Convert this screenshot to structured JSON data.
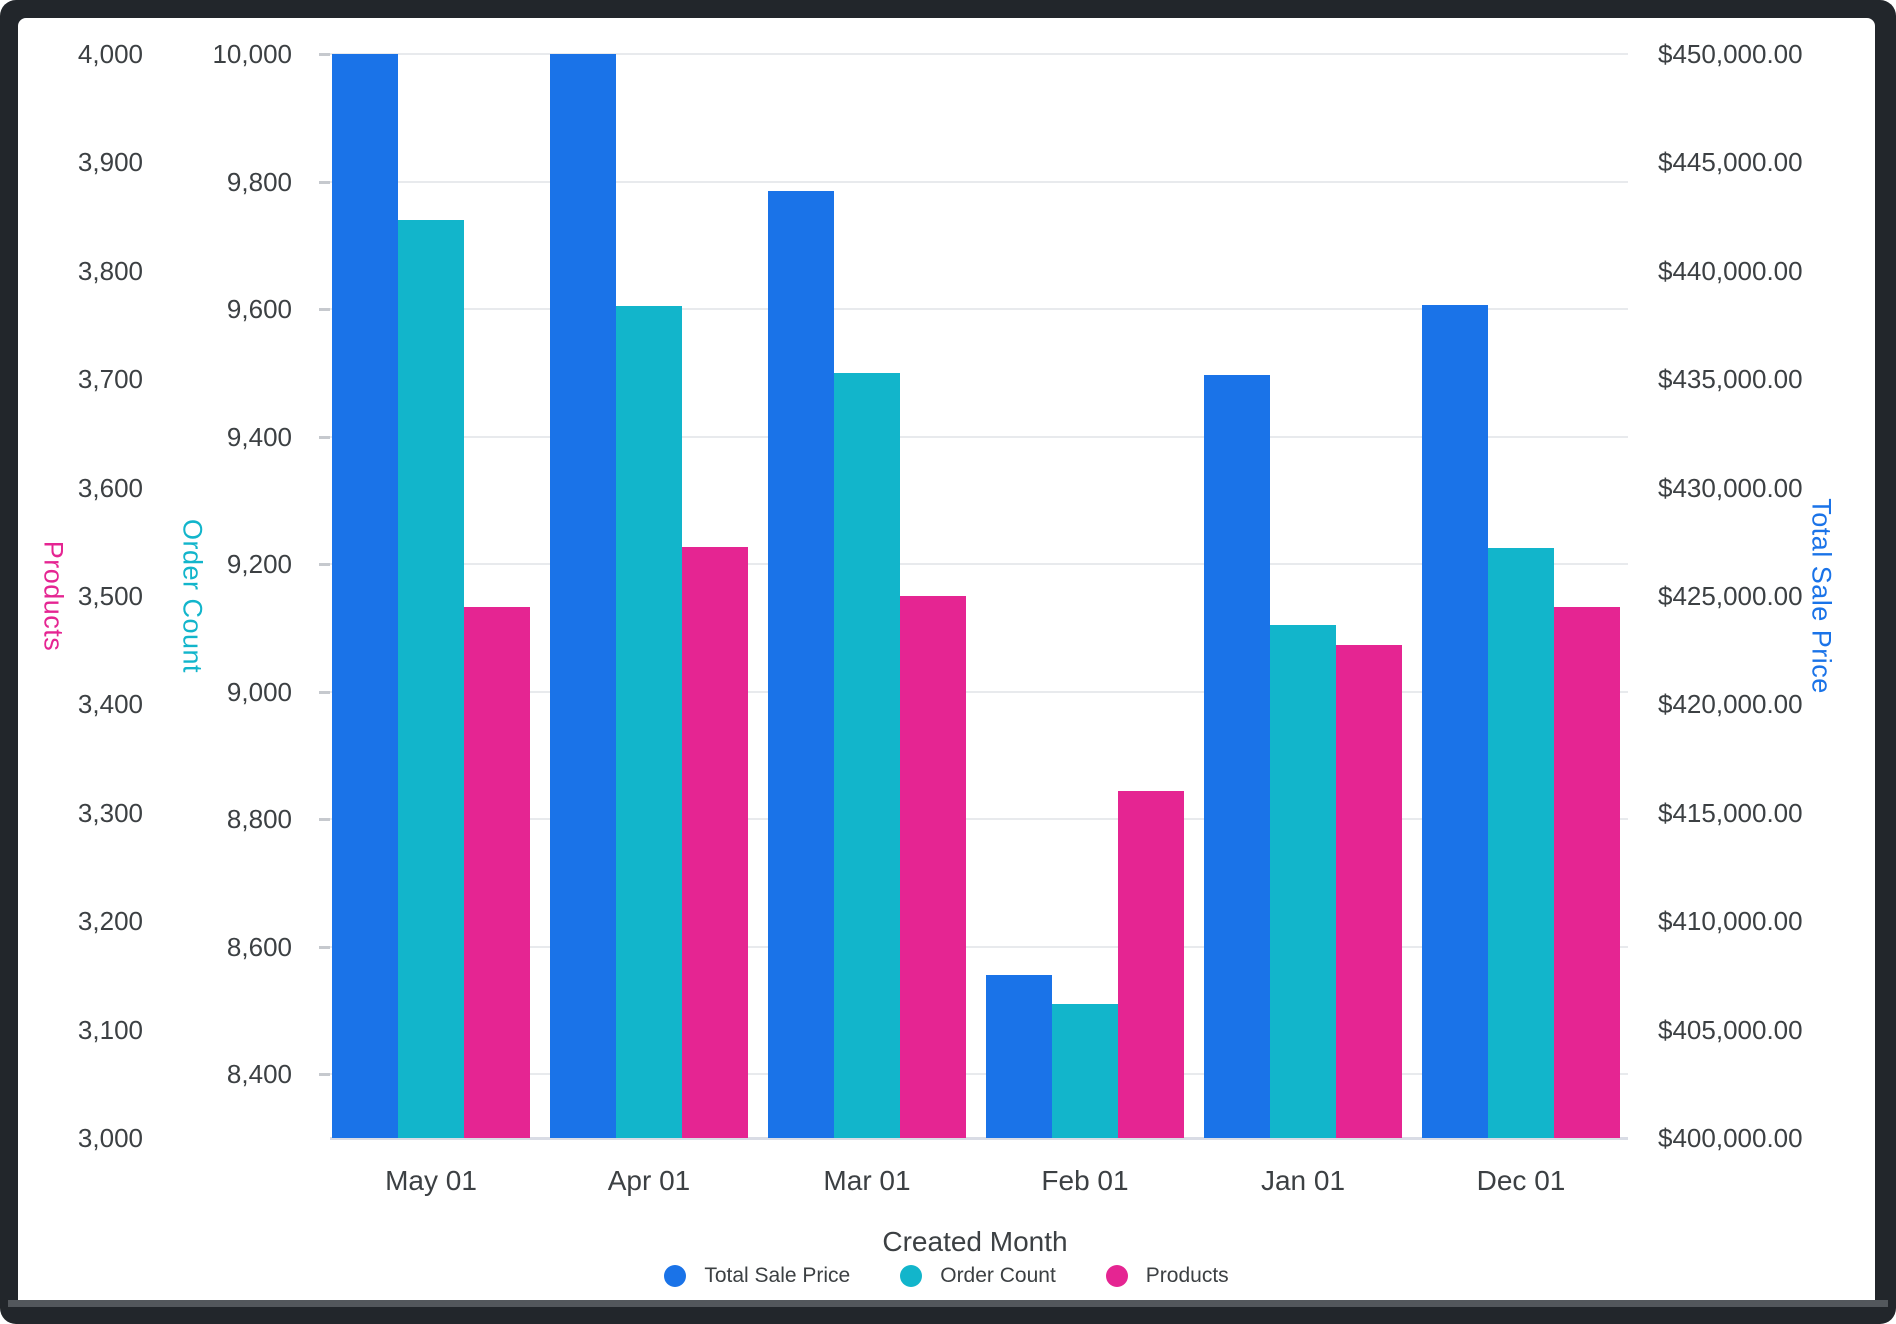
{
  "chart_data": {
    "type": "bar",
    "title": "",
    "categories": [
      "May 01",
      "Apr 01",
      "Mar 01",
      "Feb 01",
      "Jan 01",
      "Dec 01"
    ],
    "series": [
      {
        "name": "Total Sale Price",
        "color": "#1a73e8",
        "axis": "right",
        "values": [
          450000,
          450000,
          443700,
          407500,
          435200,
          438400
        ]
      },
      {
        "name": "Order Count",
        "color": "#12b5cb",
        "axis": "left_inner",
        "values": [
          9740,
          9605,
          9500,
          8510,
          9105,
          9225
        ]
      },
      {
        "name": "Products",
        "color": "#e52592",
        "axis": "left_outer",
        "values": [
          3490,
          3545,
          3500,
          3320,
          3455,
          3490
        ]
      }
    ],
    "x_axis": {
      "title": "Created Month",
      "labels": [
        "May 01",
        "Apr 01",
        "Mar 01",
        "Feb 01",
        "Jan 01",
        "Dec 01"
      ]
    },
    "axes": {
      "left_outer": {
        "title": "Products",
        "color": "#e52592",
        "min": 3000,
        "max": 4000,
        "tick_values": [
          4000,
          3900,
          3800,
          3700,
          3600,
          3500,
          3400,
          3300,
          3200,
          3100,
          3000
        ],
        "tick_labels": [
          "4,000",
          "3,900",
          "3,800",
          "3,700",
          "3,600",
          "3,500",
          "3,400",
          "3,300",
          "3,200",
          "3,100",
          "3,000"
        ]
      },
      "left_inner": {
        "title": "Order Count",
        "color": "#12b5cb",
        "min": 8300,
        "max": 10000,
        "tick_values": [
          10000,
          9800,
          9600,
          9400,
          9200,
          9000,
          8800,
          8600,
          8400
        ],
        "tick_labels": [
          "10,000",
          "9,800",
          "9,600",
          "9,400",
          "9,200",
          "9,000",
          "8,800",
          "8,600",
          "8,400"
        ]
      },
      "right": {
        "title": "Total Sale Price",
        "color": "#1a73e8",
        "min": 400000,
        "max": 450000,
        "tick_values": [
          450000,
          445000,
          440000,
          435000,
          430000,
          425000,
          420000,
          415000,
          410000,
          405000,
          400000
        ],
        "tick_labels": [
          "$450,000.00",
          "$445,000.00",
          "$440,000.00",
          "$435,000.00",
          "$430,000.00",
          "$425,000.00",
          "$420,000.00",
          "$415,000.00",
          "$410,000.00",
          "$405,000.00",
          "$400,000.00"
        ]
      }
    },
    "legend": [
      {
        "label": "Total Sale Price",
        "color": "#1a73e8"
      },
      {
        "label": "Order Count",
        "color": "#12b5cb"
      },
      {
        "label": "Products",
        "color": "#e52592"
      }
    ],
    "grid": true,
    "legend_position": "bottom"
  }
}
